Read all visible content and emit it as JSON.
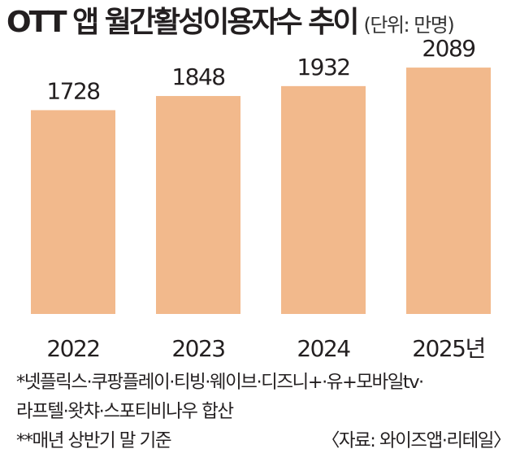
{
  "header": {
    "title": "OTT 앱 월간활성이용자수 추이",
    "unit": "(단위: 만명)"
  },
  "chart_data": {
    "type": "bar",
    "title": "OTT 앱 월간활성이용자수 추이",
    "unit_label": "(단위: 만명)",
    "categories": [
      "2022",
      "2023",
      "2024",
      "2025년"
    ],
    "values": [
      1728,
      1848,
      1932,
      2089
    ],
    "data_labels": [
      "1728",
      "1848",
      "1932",
      "2089"
    ],
    "bar_color": "#f2b98c",
    "ylim": [
      0,
      2200
    ],
    "grid": false,
    "legend": "none"
  },
  "footnotes": {
    "line1": "*넷플릭스·쿠팡플레이·티빙·웨이브·디즈니+·유+모바일tv·",
    "line2": "라프텔·왓챠·스포티비나우 합산",
    "line3": "**매년 상반기 말 기준",
    "source": "〈자료: 와이즈앱·리테일〉"
  }
}
